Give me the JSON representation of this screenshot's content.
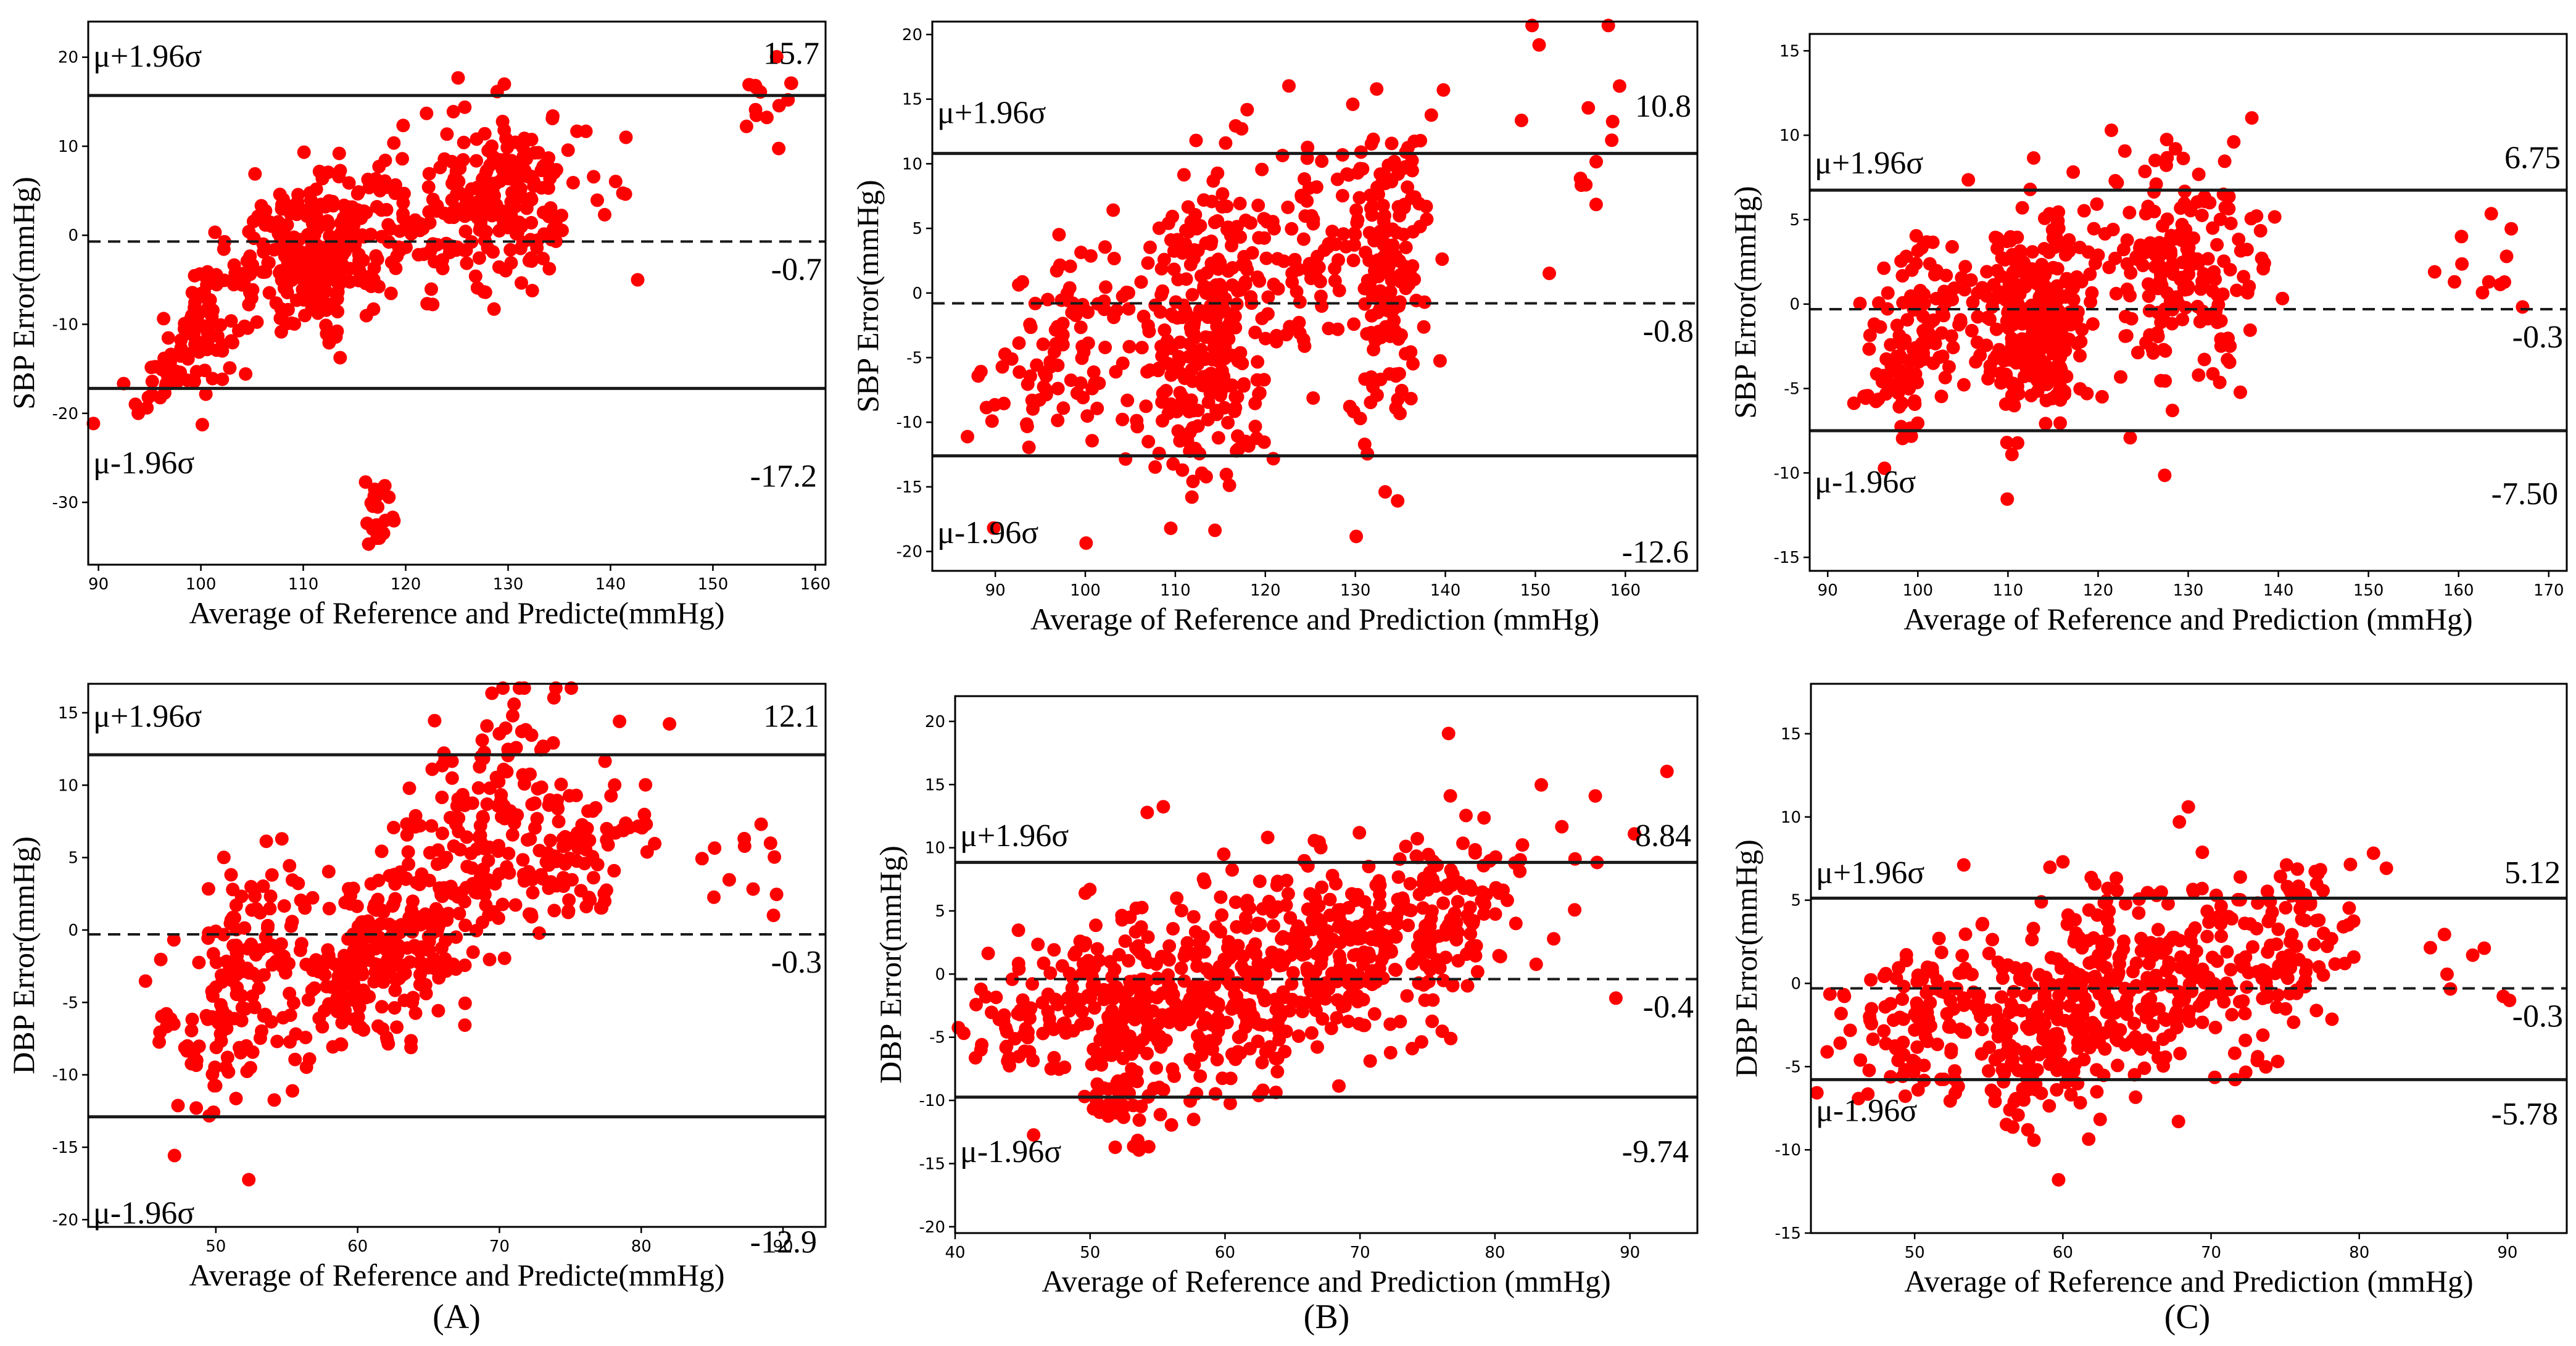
{
  "colors": {
    "points": "#ff0000",
    "lines": "#1a1a1a",
    "background": "#ffffff"
  },
  "panel_labels": [
    "(A)",
    "(B)",
    "(C)"
  ],
  "chart_data": [
    {
      "id": "A-top",
      "type": "scatter",
      "ylabel": "SBP Error(mmHg)",
      "xlabel": "Average of Reference and Predicte(mmHg)",
      "xlim": [
        89,
        161
      ],
      "ylim": [
        -37,
        24
      ],
      "xticks": [
        90,
        100,
        110,
        120,
        130,
        140,
        150,
        160
      ],
      "yticks": [
        -30,
        -20,
        -10,
        0,
        10,
        20
      ],
      "upper_text": "μ+1.96σ",
      "lower_text": "μ-1.96σ",
      "mean": -0.7,
      "upper": 15.7,
      "lower": -17.2,
      "mean_label": "-0.7",
      "upper_label": "15.7",
      "lower_label": "-17.2",
      "upper_value_y": 20.5,
      "lower_value_y": -27.0,
      "upper_text_y": 20.2,
      "lower_text_y": -25.5,
      "clusters": [
        {
          "cx": 100,
          "cy": -10,
          "sx": 3,
          "sy": 4,
          "n": 120,
          "slope": 1.2
        },
        {
          "cx": 112,
          "cy": -2,
          "sx": 3.5,
          "sy": 4,
          "n": 260,
          "slope": 0.3
        },
        {
          "cx": 128,
          "cy": 4,
          "sx": 5,
          "sy": 5,
          "n": 240,
          "slope": 0.1
        },
        {
          "cx": 117.5,
          "cy": -31,
          "sx": 0.8,
          "sy": 2.2,
          "n": 25,
          "slope": 0
        },
        {
          "cx": 155.5,
          "cy": 16,
          "sx": 2,
          "sy": 3,
          "n": 14,
          "slope": 0
        }
      ]
    },
    {
      "id": "B-top",
      "type": "scatter",
      "ylabel": "SBP Error(mmHg)",
      "xlabel": "Average of Reference and Prediction (mmHg)",
      "xlim": [
        83,
        168
      ],
      "ylim": [
        -21.5,
        21
      ],
      "xticks": [
        90,
        100,
        110,
        120,
        130,
        140,
        150,
        160
      ],
      "yticks": [
        -20,
        -15,
        -10,
        -5,
        0,
        5,
        10,
        15,
        20
      ],
      "upper_text": "μ+1.96σ",
      "lower_text": "μ-1.96σ",
      "mean": -0.8,
      "upper": 10.8,
      "lower": -12.6,
      "mean_label": "-0.8",
      "upper_label": "10.8",
      "lower_label": "-12.6",
      "upper_value_y": 14.5,
      "lower_value_y": -20.0,
      "upper_text_y": 14.0,
      "lower_text_y": -18.5,
      "clusters": [
        {
          "cx": 97,
          "cy": -4,
          "sx": 4,
          "sy": 4,
          "n": 90,
          "slope": 0.3
        },
        {
          "cx": 113,
          "cy": -3,
          "sx": 4,
          "sy": 6,
          "n": 300,
          "slope": 0.2
        },
        {
          "cx": 124,
          "cy": 4,
          "sx": 3,
          "sy": 4,
          "n": 70,
          "slope": 0.4
        },
        {
          "cx": 133,
          "cy": 1,
          "sx": 2.5,
          "sy": 6,
          "n": 180,
          "slope": 0.3
        },
        {
          "cx": 157,
          "cy": 12,
          "sx": 4,
          "sy": 5,
          "n": 14,
          "slope": 0
        }
      ]
    },
    {
      "id": "C-top",
      "type": "scatter",
      "ylabel": "SBP Error(mmHg)",
      "xlabel": "Average of Reference and Prediction (mmHg)",
      "xlim": [
        88,
        172
      ],
      "ylim": [
        -15.8,
        16
      ],
      "xticks": [
        90,
        100,
        110,
        120,
        130,
        140,
        150,
        160,
        170
      ],
      "yticks": [
        -15,
        -10,
        -5,
        0,
        5,
        10,
        15
      ],
      "upper_text": "μ+1.96σ",
      "lower_text": "μ-1.96σ",
      "mean": -0.3,
      "upper": 6.75,
      "lower": -7.5,
      "mean_label": "-0.3",
      "upper_label": "6.75",
      "lower_label": "-7.50",
      "upper_value_y": 8.7,
      "lower_value_y": -11.2,
      "upper_text_y": 8.4,
      "lower_text_y": -10.5,
      "clusters": [
        {
          "cx": 100,
          "cy": -2,
          "sx": 3,
          "sy": 3,
          "n": 140,
          "slope": 0.3
        },
        {
          "cx": 113,
          "cy": -1,
          "sx": 3,
          "sy": 3,
          "n": 280,
          "slope": 0.2
        },
        {
          "cx": 128,
          "cy": 2,
          "sx": 5,
          "sy": 3.5,
          "n": 200,
          "slope": 0.1
        },
        {
          "cx": 163,
          "cy": 2,
          "sx": 3,
          "sy": 1.5,
          "n": 12,
          "slope": 0
        }
      ]
    },
    {
      "id": "A-bottom",
      "type": "scatter",
      "ylabel": "DBP Error(mmHg)",
      "xlabel": "Average of Reference and Predicte(mmHg)",
      "xlim": [
        41,
        93
      ],
      "ylim": [
        -20.5,
        17
      ],
      "xticks": [
        50,
        60,
        70,
        80,
        90
      ],
      "yticks": [
        -20,
        -15,
        -10,
        -5,
        0,
        5,
        10,
        15
      ],
      "upper_text": "μ+1.96σ",
      "lower_text": "μ-1.96σ",
      "mean": -0.3,
      "upper": 12.1,
      "lower": -12.9,
      "mean_label": "-0.3",
      "upper_label": "12.1",
      "lower_label": "-12.9",
      "upper_value_y": 14.8,
      "lower_value_y": -21.5,
      "upper_text_y": 14.8,
      "lower_text_y": -19.5,
      "clusters": [
        {
          "cx": 52,
          "cy": -4,
          "sx": 3,
          "sy": 4,
          "n": 180,
          "slope": 0.5
        },
        {
          "cx": 62,
          "cy": -2,
          "sx": 3,
          "sy": 3,
          "n": 200,
          "slope": 0.5
        },
        {
          "cx": 68,
          "cy": 6,
          "sx": 3,
          "sy": 4.5,
          "n": 160,
          "slope": 0.9
        },
        {
          "cx": 75,
          "cy": 5,
          "sx": 3,
          "sy": 3,
          "n": 100,
          "slope": 0.4
        },
        {
          "cx": 87,
          "cy": 4,
          "sx": 2,
          "sy": 2.5,
          "n": 12,
          "slope": 0
        }
      ]
    },
    {
      "id": "B-bottom",
      "type": "scatter",
      "ylabel": "DBP Error(mmHg)",
      "xlabel": "Average of Reference and Prediction (mmHg)",
      "xlim": [
        40,
        95
      ],
      "ylim": [
        -20.5,
        22
      ],
      "xticks": [
        40,
        50,
        60,
        70,
        80,
        90
      ],
      "yticks": [
        -20,
        -15,
        -10,
        -5,
        0,
        5,
        10,
        15,
        20
      ],
      "upper_text": "μ+1.96σ",
      "lower_text": "μ-1.96σ",
      "mean": -0.4,
      "upper": 8.84,
      "lower": -9.74,
      "mean_label": "-0.4",
      "upper_label": "8.84",
      "lower_label": "-9.74",
      "upper_value_y": 11.0,
      "lower_value_y": -14.0,
      "upper_text_y": 11.0,
      "lower_text_y": -14.0,
      "clusters": [
        {
          "cx": 47,
          "cy": -2,
          "sx": 3,
          "sy": 3,
          "n": 100,
          "slope": 0.3
        },
        {
          "cx": 53,
          "cy": -4,
          "sx": 2.5,
          "sy": 5,
          "n": 180,
          "slope": 0.6
        },
        {
          "cx": 61,
          "cy": -1,
          "sx": 3,
          "sy": 4,
          "n": 200,
          "slope": 0.5
        },
        {
          "cx": 68,
          "cy": 1,
          "sx": 3,
          "sy": 4,
          "n": 140,
          "slope": 0.4
        },
        {
          "cx": 75,
          "cy": 4,
          "sx": 3,
          "sy": 4,
          "n": 150,
          "slope": 0.5
        },
        {
          "cx": 84,
          "cy": 10,
          "sx": 4,
          "sy": 6,
          "n": 14,
          "slope": 0
        }
      ]
    },
    {
      "id": "C-bottom",
      "type": "scatter",
      "ylabel": "DBP Error(mmHg)",
      "xlabel": "Average of Reference and Prediction (mmHg)",
      "xlim": [
        43,
        94
      ],
      "ylim": [
        -15,
        18
      ],
      "xticks": [
        50,
        60,
        70,
        80,
        90
      ],
      "yticks": [
        -15,
        -10,
        -5,
        0,
        5,
        10,
        15
      ],
      "upper_text": "μ+1.96σ",
      "lower_text": "μ-1.96σ",
      "mean": -0.3,
      "upper": 5.12,
      "lower": -5.78,
      "mean_label": "-0.3",
      "upper_label": "5.12",
      "lower_label": "-5.78",
      "upper_value_y": 6.7,
      "lower_value_y": -7.8,
      "upper_text_y": 6.7,
      "lower_text_y": -7.6,
      "clusters": [
        {
          "cx": 50,
          "cy": -2,
          "sx": 3,
          "sy": 2.5,
          "n": 120,
          "slope": 0.3
        },
        {
          "cx": 60,
          "cy": -1,
          "sx": 3,
          "sy": 3,
          "n": 260,
          "slope": 0.4
        },
        {
          "cx": 68,
          "cy": 0,
          "sx": 3,
          "sy": 3,
          "n": 160,
          "slope": 0.4
        },
        {
          "cx": 75,
          "cy": 2,
          "sx": 2.5,
          "sy": 3,
          "n": 90,
          "slope": 0.5
        },
        {
          "cx": 88,
          "cy": 0.5,
          "sx": 3,
          "sy": 1.5,
          "n": 10,
          "slope": 0
        }
      ]
    }
  ]
}
